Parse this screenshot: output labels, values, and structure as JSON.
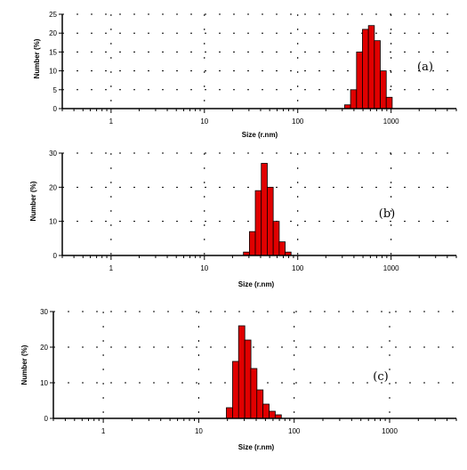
{
  "chart_data": [
    {
      "type": "bar",
      "panel_label": "(a)",
      "xlabel": "Size (r.nm)",
      "ylabel": "Number (%)",
      "xscale": "log",
      "xlim": [
        0.3,
        5000
      ],
      "ylim": [
        0,
        25
      ],
      "yticks": [
        "0",
        "5",
        "10",
        "15",
        "20",
        "25"
      ],
      "xticks": [
        "1",
        "10",
        "100",
        "1000"
      ],
      "grid": true,
      "bar_color": "#e00000",
      "x": [
        342,
        396,
        459,
        531,
        615,
        712,
        825,
        955
      ],
      "values": [
        1,
        5,
        15,
        21,
        22,
        18,
        10,
        3
      ]
    },
    {
      "type": "bar",
      "panel_label": "(b)",
      "xlabel": "Size (r.nm)",
      "ylabel": "Number (%)",
      "xscale": "log",
      "xlim": [
        0.3,
        5000
      ],
      "ylim": [
        0,
        30
      ],
      "yticks": [
        "0",
        "10",
        "20",
        "30"
      ],
      "xticks": [
        "1",
        "10",
        "100",
        "1000"
      ],
      "grid": true,
      "bar_color": "#e00000",
      "x": [
        28.2,
        32.7,
        37.8,
        43.8,
        50.7,
        58.8,
        68.1,
        78.8
      ],
      "values": [
        1,
        7,
        19,
        27,
        20,
        10,
        4,
        1
      ]
    },
    {
      "type": "bar",
      "panel_label": "(c)",
      "xlabel": "Size (r.nm)",
      "ylabel": "Number (%)",
      "xscale": "log",
      "xlim": [
        0.3,
        5000
      ],
      "ylim": [
        0,
        30
      ],
      "yticks": [
        "0",
        "10",
        "20",
        "30"
      ],
      "xticks": [
        "1",
        "10",
        "100",
        "1000"
      ],
      "grid": true,
      "bar_color": "#e00000",
      "x": [
        21.0,
        24.4,
        28.2,
        32.7,
        37.8,
        43.8,
        50.7,
        58.8,
        68.1
      ],
      "values": [
        3,
        16,
        26,
        22,
        14,
        8,
        4,
        2,
        1
      ]
    }
  ]
}
